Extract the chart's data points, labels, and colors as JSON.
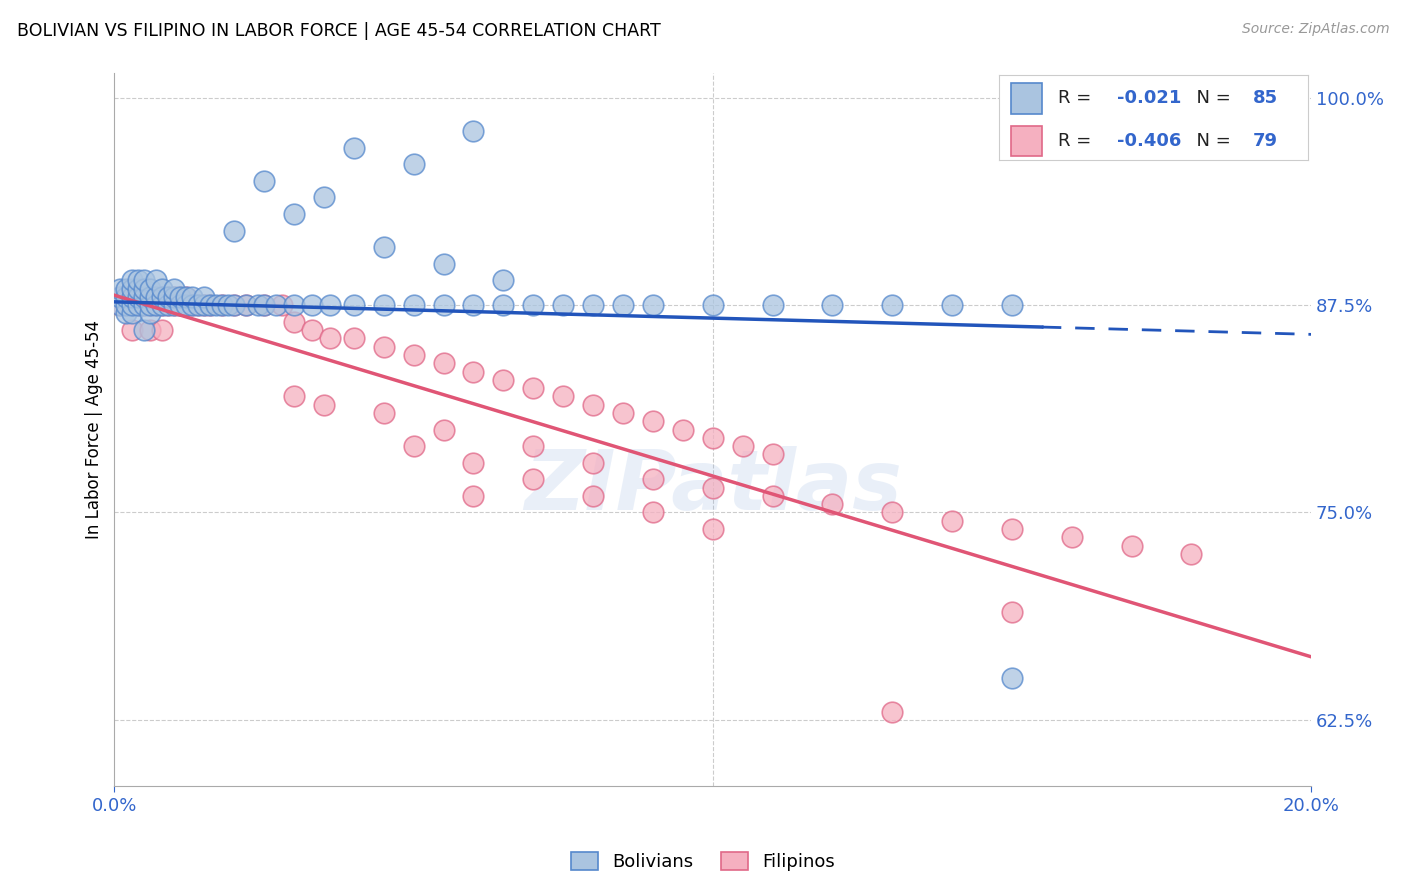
{
  "title": "BOLIVIAN VS FILIPINO IN LABOR FORCE | AGE 45-54 CORRELATION CHART",
  "source": "Source: ZipAtlas.com",
  "xlim": [
    0.0,
    0.2
  ],
  "ylim": [
    0.585,
    1.015
  ],
  "ylabel": "In Labor Force | Age 45-54",
  "bolivians_R": "-0.021",
  "bolivians_N": "85",
  "filipinos_R": "-0.406",
  "filipinos_N": "79",
  "blue_fill": "#aac4e0",
  "blue_edge": "#5588cc",
  "pink_fill": "#f5b0c0",
  "pink_edge": "#e06888",
  "blue_line": "#2255bb",
  "pink_line": "#e05575",
  "tick_color": "#3366cc",
  "grid_color": "#cccccc",
  "bg_color": "#ffffff",
  "ytick_vals": [
    0.625,
    0.75,
    0.875,
    1.0
  ],
  "ytick_labels": [
    "62.5%",
    "75.0%",
    "87.5%",
    "100.0%"
  ],
  "blue_reg_intercept": 0.877,
  "blue_reg_slope": -0.098,
  "pink_reg_intercept": 0.881,
  "pink_reg_slope": -1.09,
  "bolivians_x": [
    0.001,
    0.001,
    0.001,
    0.002,
    0.002,
    0.002,
    0.002,
    0.003,
    0.003,
    0.003,
    0.003,
    0.003,
    0.004,
    0.004,
    0.004,
    0.004,
    0.005,
    0.005,
    0.005,
    0.005,
    0.005,
    0.006,
    0.006,
    0.006,
    0.006,
    0.007,
    0.007,
    0.007,
    0.008,
    0.008,
    0.008,
    0.009,
    0.009,
    0.01,
    0.01,
    0.01,
    0.011,
    0.011,
    0.012,
    0.012,
    0.013,
    0.013,
    0.014,
    0.015,
    0.015,
    0.016,
    0.017,
    0.018,
    0.019,
    0.02,
    0.022,
    0.024,
    0.025,
    0.027,
    0.03,
    0.033,
    0.036,
    0.04,
    0.045,
    0.05,
    0.055,
    0.06,
    0.065,
    0.07,
    0.075,
    0.08,
    0.085,
    0.09,
    0.1,
    0.11,
    0.12,
    0.13,
    0.14,
    0.15,
    0.03,
    0.035,
    0.025,
    0.05,
    0.04,
    0.06,
    0.02,
    0.045,
    0.055,
    0.065,
    0.15
  ],
  "bolivians_y": [
    0.875,
    0.88,
    0.885,
    0.87,
    0.875,
    0.88,
    0.885,
    0.87,
    0.875,
    0.88,
    0.885,
    0.89,
    0.875,
    0.88,
    0.885,
    0.89,
    0.86,
    0.875,
    0.88,
    0.885,
    0.89,
    0.87,
    0.875,
    0.88,
    0.885,
    0.875,
    0.88,
    0.89,
    0.875,
    0.88,
    0.885,
    0.875,
    0.88,
    0.875,
    0.88,
    0.885,
    0.875,
    0.88,
    0.875,
    0.88,
    0.875,
    0.88,
    0.875,
    0.875,
    0.88,
    0.875,
    0.875,
    0.875,
    0.875,
    0.875,
    0.875,
    0.875,
    0.875,
    0.875,
    0.875,
    0.875,
    0.875,
    0.875,
    0.875,
    0.875,
    0.875,
    0.875,
    0.875,
    0.875,
    0.875,
    0.875,
    0.875,
    0.875,
    0.875,
    0.875,
    0.875,
    0.875,
    0.875,
    0.875,
    0.93,
    0.94,
    0.95,
    0.96,
    0.97,
    0.98,
    0.92,
    0.91,
    0.9,
    0.89,
    0.65
  ],
  "filipinos_x": [
    0.001,
    0.001,
    0.002,
    0.002,
    0.003,
    0.003,
    0.003,
    0.004,
    0.004,
    0.005,
    0.005,
    0.006,
    0.006,
    0.006,
    0.007,
    0.007,
    0.008,
    0.008,
    0.008,
    0.009,
    0.009,
    0.01,
    0.01,
    0.011,
    0.011,
    0.012,
    0.012,
    0.013,
    0.014,
    0.015,
    0.016,
    0.018,
    0.02,
    0.022,
    0.025,
    0.028,
    0.03,
    0.033,
    0.036,
    0.04,
    0.045,
    0.05,
    0.055,
    0.06,
    0.065,
    0.07,
    0.075,
    0.08,
    0.085,
    0.09,
    0.095,
    0.1,
    0.105,
    0.11,
    0.03,
    0.035,
    0.045,
    0.055,
    0.07,
    0.08,
    0.09,
    0.1,
    0.11,
    0.12,
    0.13,
    0.14,
    0.15,
    0.16,
    0.17,
    0.18,
    0.05,
    0.06,
    0.07,
    0.08,
    0.09,
    0.1,
    0.15,
    0.06,
    0.13
  ],
  "filipinos_y": [
    0.875,
    0.88,
    0.875,
    0.88,
    0.86,
    0.875,
    0.88,
    0.875,
    0.88,
    0.875,
    0.88,
    0.86,
    0.875,
    0.88,
    0.875,
    0.88,
    0.86,
    0.875,
    0.88,
    0.875,
    0.88,
    0.875,
    0.88,
    0.875,
    0.88,
    0.875,
    0.88,
    0.875,
    0.875,
    0.875,
    0.875,
    0.875,
    0.875,
    0.875,
    0.875,
    0.875,
    0.865,
    0.86,
    0.855,
    0.855,
    0.85,
    0.845,
    0.84,
    0.835,
    0.83,
    0.825,
    0.82,
    0.815,
    0.81,
    0.805,
    0.8,
    0.795,
    0.79,
    0.785,
    0.82,
    0.815,
    0.81,
    0.8,
    0.79,
    0.78,
    0.77,
    0.765,
    0.76,
    0.755,
    0.75,
    0.745,
    0.74,
    0.735,
    0.73,
    0.725,
    0.79,
    0.78,
    0.77,
    0.76,
    0.75,
    0.74,
    0.69,
    0.76,
    0.63
  ]
}
